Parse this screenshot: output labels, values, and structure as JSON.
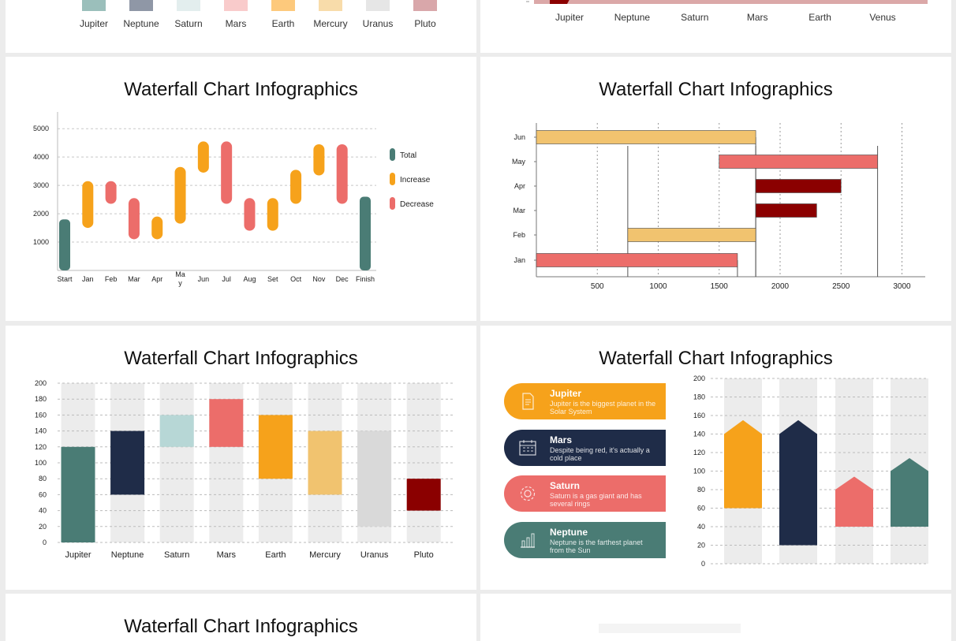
{
  "top_left": {
    "legend": [
      {
        "label": "Jupiter",
        "color": "#9bbfbb"
      },
      {
        "label": "Neptune",
        "color": "#8f97a6"
      },
      {
        "label": "Saturn",
        "color": "#e3eeee"
      },
      {
        "label": "Mars",
        "color": "#f9cbcb"
      },
      {
        "label": "Earth",
        "color": "#fdc97c"
      },
      {
        "label": "Mercury",
        "color": "#f8dcaa"
      },
      {
        "label": "Uranus",
        "color": "#e6e6e6"
      },
      {
        "label": "Pluto",
        "color": "#d9a7aa"
      }
    ]
  },
  "top_right": {
    "categories": [
      "Jupiter",
      "Neptune",
      "Saturn",
      "Mars",
      "Earth",
      "Venus"
    ]
  },
  "charts": [
    {
      "title": "Waterfall Chart Infographics",
      "legend": [
        {
          "label": "Total",
          "color": "#4a7c75"
        },
        {
          "label": "Increase",
          "color": "#f6a21b"
        },
        {
          "label": "Decrease",
          "color": "#ec6d6a"
        }
      ]
    },
    {
      "title": "Waterfall Chart Infographics"
    },
    {
      "title": "Waterfall Chart Infographics"
    },
    {
      "title": "Waterfall Chart Infographics",
      "cards": [
        {
          "title": "Jupiter",
          "desc": "Jupiter is the biggest planet in the Solar System",
          "color": "#f6a21b",
          "icon": "document-icon"
        },
        {
          "title": "Mars",
          "desc": "Despite being red, it's actually a cold place",
          "color": "#1f2c48",
          "icon": "calendar-icon"
        },
        {
          "title": "Saturn",
          "desc": "Saturn is a gas giant and has several rings",
          "color": "#ec6d6a",
          "icon": "gear-icon"
        },
        {
          "title": "Neptune",
          "desc": "Neptune is the farthest planet from the Sun",
          "color": "#4a7c75",
          "icon": "bar-chart-icon"
        }
      ]
    },
    {
      "title": "Waterfall Chart Infographics"
    }
  ],
  "chart_data": [
    {
      "type": "bar",
      "subtype": "waterfall-floating",
      "categories": [
        "Start",
        "Jan",
        "Feb",
        "Mar",
        "Apr",
        "May",
        "Jun",
        "Jul",
        "Aug",
        "Set",
        "Oct",
        "Nov",
        "Dec",
        "Finish"
      ],
      "low": [
        0,
        1500,
        2350,
        1100,
        1100,
        1650,
        3450,
        2350,
        1400,
        1400,
        2350,
        3350,
        2350,
        0
      ],
      "high": [
        1800,
        3150,
        3150,
        2550,
        1900,
        3650,
        4550,
        4550,
        2550,
        2550,
        3550,
        4450,
        4450,
        2600
      ],
      "kind": [
        "Total",
        "Increase",
        "Decrease",
        "Decrease",
        "Increase",
        "Increase",
        "Increase",
        "Decrease",
        "Decrease",
        "Increase",
        "Increase",
        "Increase",
        "Decrease",
        "Total"
      ],
      "ylim": [
        0,
        5000
      ],
      "yticks": [
        1000,
        2000,
        3000,
        4000,
        5000
      ],
      "legend_position": "right",
      "grid": true
    },
    {
      "type": "bar",
      "subtype": "horizontal-waterfall",
      "categories": [
        "Jan",
        "Feb",
        "Mar",
        "Apr",
        "May",
        "Jun"
      ],
      "start": [
        0,
        750,
        1800,
        1800,
        1500,
        0
      ],
      "end": [
        1650,
        1800,
        2300,
        2500,
        2800,
        1800
      ],
      "colors": [
        "#ec6d6a",
        "#f1c36f",
        "#8b0000",
        "#8b0000",
        "#ec6d6a",
        "#f1c36f"
      ],
      "xlim": [
        0,
        3200
      ],
      "xticks": [
        500,
        1000,
        1500,
        2000,
        2500,
        3000
      ],
      "grid": true
    },
    {
      "type": "bar",
      "subtype": "floating-columns",
      "categories": [
        "Jupiter",
        "Neptune",
        "Saturn",
        "Mars",
        "Earth",
        "Mercury",
        "Uranus",
        "Pluto"
      ],
      "low": [
        0,
        60,
        120,
        120,
        80,
        60,
        20,
        40
      ],
      "high": [
        120,
        140,
        160,
        180,
        160,
        140,
        140,
        80
      ],
      "colors": [
        "#4a7c75",
        "#1f2c48",
        "#b7d7d6",
        "#ec6d6a",
        "#f6a21b",
        "#f1c36f",
        "#d9d9d9",
        "#8b0000"
      ],
      "ylim": [
        0,
        200
      ],
      "yticks": [
        0,
        20,
        40,
        60,
        80,
        100,
        120,
        140,
        160,
        180,
        200
      ],
      "grid": true
    },
    {
      "type": "bar",
      "subtype": "floating-arrow-columns",
      "categories": [
        "Jupiter",
        "Mars",
        "Saturn",
        "Neptune"
      ],
      "low": [
        60,
        20,
        40,
        40
      ],
      "high": [
        140,
        140,
        80,
        100
      ],
      "tip": [
        155,
        155,
        94,
        114
      ],
      "colors": [
        "#f6a21b",
        "#1f2c48",
        "#ec6d6a",
        "#4a7c75"
      ],
      "ylim": [
        0,
        200
      ],
      "yticks": [
        0,
        20,
        40,
        60,
        80,
        100,
        120,
        140,
        160,
        180,
        200
      ],
      "grid": true
    }
  ]
}
